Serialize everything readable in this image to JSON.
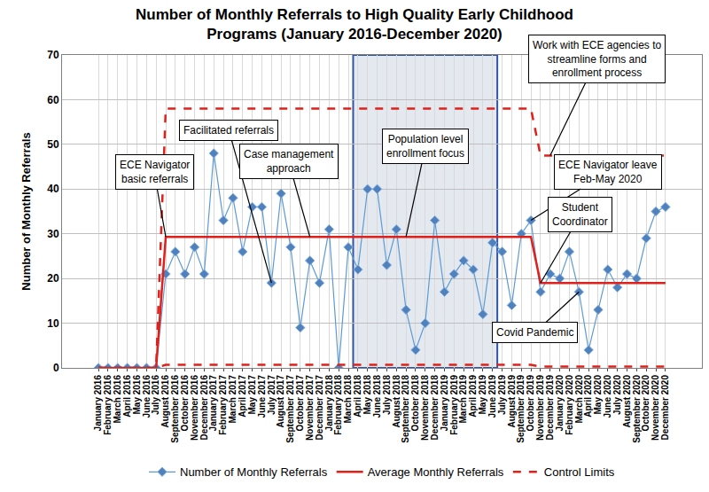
{
  "chart_data": {
    "type": "line",
    "title": "Number of Monthly Referrals to High Quality Early Childhood\nPrograms (January 2016-December 2020)",
    "y_label": "Number of Monthly Referrals",
    "categories": [
      "January 2016",
      "February 2016",
      "March 2016",
      "April 2016",
      "May 2016",
      "June 2016",
      "July 2016",
      "August 2016",
      "September 2016",
      "October 2016",
      "November 2016",
      "December 2016",
      "January 2017",
      "February 2017",
      "March 2017",
      "April 2017",
      "May 2017",
      "June 2017",
      "July 2017",
      "August 2017",
      "September 2017",
      "October 2017",
      "November 2017",
      "December 2017",
      "January 2018",
      "February 2018",
      "March 2018",
      "April 2018",
      "May 2018",
      "June 2018",
      "July 2018",
      "August 2018",
      "September 2018",
      "October 2018",
      "November 2018",
      "December 2018",
      "January 2019",
      "February 2019",
      "March 2019",
      "April 2019",
      "May 2019",
      "June 2019",
      "July 2019",
      "August 2019",
      "September 2019",
      "October 2019",
      "November 2019",
      "December 2019",
      "January 2020",
      "February 2020",
      "March 2020",
      "April 2020",
      "May 2020",
      "June 2020",
      "July 2020",
      "August 2020",
      "September 2020",
      "October 2020",
      "November 2020",
      "December 2020"
    ],
    "series": [
      {
        "name": "Number of Monthly Referrals",
        "color": "#5b9bd5",
        "marker": "diamond",
        "line_style": "solid",
        "values": [
          0,
          0,
          0,
          0,
          0,
          0,
          0,
          21,
          26,
          21,
          27,
          21,
          48,
          33,
          38,
          26,
          36,
          36,
          19,
          39,
          27,
          9,
          24,
          19,
          31,
          0,
          27,
          22,
          40,
          40,
          23,
          31,
          13,
          4,
          10,
          33,
          17,
          21,
          24,
          22,
          12,
          28,
          26,
          14,
          30,
          33,
          17,
          21,
          20,
          26,
          17,
          4,
          13,
          22,
          18,
          21,
          20,
          29,
          35,
          36
        ]
      },
      {
        "name": "Average Monthly Referrals",
        "color": "#e0201b",
        "line_style": "solid",
        "values": [
          0,
          0,
          0,
          0,
          0,
          0,
          0,
          29.3,
          29.3,
          29.3,
          29.3,
          29.3,
          29.3,
          29.3,
          29.3,
          29.3,
          29.3,
          29.3,
          29.3,
          29.3,
          29.3,
          29.3,
          29.3,
          29.3,
          29.3,
          29.3,
          29.3,
          29.3,
          29.3,
          29.3,
          29.3,
          29.3,
          29.3,
          29.3,
          29.3,
          29.3,
          29.3,
          29.3,
          29.3,
          29.3,
          29.3,
          29.3,
          29.3,
          29.3,
          29.3,
          29.3,
          19,
          19,
          19,
          19,
          19,
          19,
          19,
          19,
          19,
          19,
          19,
          19,
          19,
          19
        ]
      },
      {
        "name": "Control Limits",
        "color": "#e0201b",
        "line_style": "dashed",
        "values": [
          0,
          0,
          0,
          0,
          0,
          0,
          0,
          58,
          58,
          58,
          58,
          58,
          58,
          58,
          58,
          58,
          58,
          58,
          58,
          58,
          58,
          58,
          58,
          58,
          58,
          58,
          58,
          58,
          58,
          58,
          58,
          58,
          58,
          58,
          58,
          58,
          58,
          58,
          58,
          58,
          58,
          58,
          58,
          58,
          58,
          58,
          47.5,
          47.5,
          47.5,
          47.5,
          47.5,
          47.5,
          47.5,
          47.5,
          47.5,
          47.5,
          47.5,
          47.5,
          47.5,
          47.5
        ]
      },
      {
        "name": "Control Limits",
        "color": "#e0201b",
        "line_style": "dashed",
        "values": [
          0,
          0,
          0,
          0,
          0,
          0,
          0,
          0.7,
          0.7,
          0.7,
          0.7,
          0.7,
          0.7,
          0.7,
          0.7,
          0.7,
          0.7,
          0.7,
          0.7,
          0.7,
          0.7,
          0.7,
          0.7,
          0.7,
          0.7,
          0.7,
          0.7,
          0.7,
          0.7,
          0.7,
          0.7,
          0.7,
          0.7,
          0.7,
          0.7,
          0.7,
          0.7,
          0.7,
          0.7,
          0.7,
          0.7,
          0.7,
          0.7,
          0.7,
          0.7,
          0.7,
          0.3,
          0.3,
          0.3,
          0.3,
          0.3,
          0.3,
          0.3,
          0.3,
          0.3,
          0.3,
          0.3,
          0.3,
          0.3,
          0.3
        ]
      }
    ],
    "ylim": [
      0,
      70
    ],
    "yticks": [
      0,
      10,
      20,
      30,
      40,
      50,
      60,
      70
    ],
    "grid": true,
    "legend": "bottom",
    "shaded_period": {
      "start": "April 2018",
      "end": "June 2019"
    },
    "annotations": [
      {
        "text": "ECE Navigator\nbasic referrals",
        "x": "August 2016",
        "y": 29.3
      },
      {
        "text": "Facilitated referrals",
        "x": "July 2017",
        "y": 19
      },
      {
        "text": "Case management\napproach",
        "x": "November 2017",
        "y": 29.3
      },
      {
        "text": "Population level\nenrollment focus",
        "x": "September 2018",
        "y": 29.3
      },
      {
        "text": "Work with ECE agencies to\nstreamline forms and\nenrollment process",
        "x": "December 2019",
        "y": 47.5
      },
      {
        "text": "ECE Navigator leave\nFeb-May 2020",
        "x": "October 2019",
        "y": 33
      },
      {
        "text": "Student\nCoordinator",
        "x": "November 2019",
        "y": 19
      },
      {
        "text": "Covid Pandemic",
        "x": "March 2020",
        "y": 17
      }
    ]
  }
}
